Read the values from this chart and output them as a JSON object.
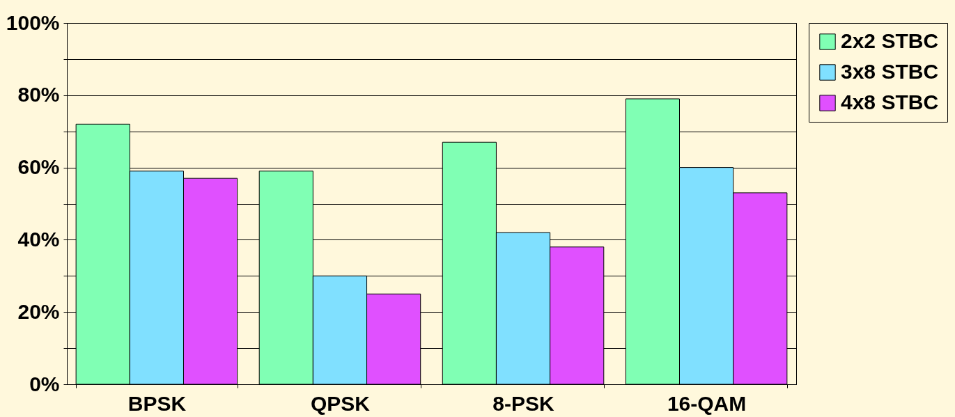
{
  "chart_data": {
    "type": "bar",
    "categories": [
      "BPSK",
      "QPSK",
      "8-PSK",
      "16-QAM"
    ],
    "series": [
      {
        "name": "2x2 STBC",
        "color": "#80ffb4",
        "values": [
          72,
          59,
          67,
          79
        ]
      },
      {
        "name": "3x8 STBC",
        "color": "#80e0ff",
        "values": [
          59,
          30,
          42,
          60
        ]
      },
      {
        "name": "4x8 STBC",
        "color": "#e050ff",
        "values": [
          57,
          25,
          38,
          53
        ]
      }
    ],
    "ylim": [
      0,
      100
    ],
    "yticks": [
      {
        "value": 0,
        "label": "0%"
      },
      {
        "value": 10,
        "label": null
      },
      {
        "value": 20,
        "label": "20%"
      },
      {
        "value": 30,
        "label": null
      },
      {
        "value": 40,
        "label": "40%"
      },
      {
        "value": 50,
        "label": null
      },
      {
        "value": 60,
        "label": "60%"
      },
      {
        "value": 70,
        "label": null
      },
      {
        "value": 80,
        "label": "80%"
      },
      {
        "value": 90,
        "label": null
      },
      {
        "value": 100,
        "label": "100%"
      }
    ],
    "grid": true,
    "legend": "right"
  }
}
